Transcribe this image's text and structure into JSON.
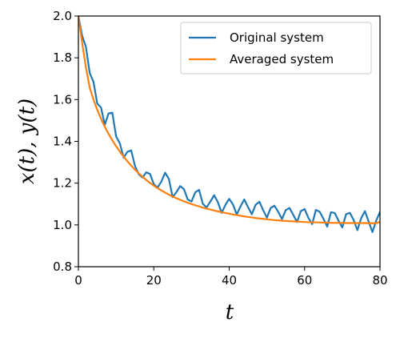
{
  "chart_data": {
    "type": "line",
    "title": "",
    "xlabel": "t",
    "ylabel": "x(t), y(t)",
    "xlim": [
      0,
      80
    ],
    "ylim": [
      0.8,
      2.0
    ],
    "x_ticks": [
      0,
      20,
      40,
      60,
      80
    ],
    "y_ticks": [
      0.8,
      1.0,
      1.2,
      1.4,
      1.6,
      1.8,
      2.0
    ],
    "x_tick_labels": [
      "0",
      "20",
      "40",
      "60",
      "80"
    ],
    "y_tick_labels": [
      "0.8",
      "1.0",
      "1.2",
      "1.4",
      "1.6",
      "1.8",
      "2.0"
    ],
    "grid": false,
    "legend_position": "top-right",
    "series": [
      {
        "name": "Original system",
        "color": "#1f77b4",
        "x": [
          0,
          1,
          2,
          3,
          4,
          5,
          6,
          7,
          8,
          9,
          10,
          11,
          12,
          13,
          14,
          15,
          16,
          17,
          18,
          19,
          20,
          21,
          22,
          23,
          24,
          25,
          26,
          27,
          28,
          29,
          30,
          31,
          32,
          33,
          34,
          35,
          36,
          37,
          38,
          39,
          40,
          41,
          42,
          43,
          44,
          45,
          46,
          47,
          48,
          49,
          50,
          51,
          52,
          53,
          54,
          55,
          56,
          57,
          58,
          59,
          60,
          61,
          62,
          63,
          64,
          65,
          66,
          67,
          68,
          69,
          70,
          71,
          72,
          73,
          74,
          75,
          76,
          77,
          78,
          79,
          80
        ],
        "y": [
          2.0,
          1.905,
          1.852,
          1.727,
          1.685,
          1.581,
          1.562,
          1.479,
          1.534,
          1.537,
          1.424,
          1.39,
          1.322,
          1.35,
          1.357,
          1.283,
          1.243,
          1.227,
          1.252,
          1.244,
          1.195,
          1.179,
          1.207,
          1.25,
          1.22,
          1.133,
          1.157,
          1.186,
          1.171,
          1.122,
          1.112,
          1.156,
          1.168,
          1.101,
          1.084,
          1.112,
          1.142,
          1.109,
          1.058,
          1.096,
          1.125,
          1.098,
          1.05,
          1.089,
          1.122,
          1.085,
          1.051,
          1.096,
          1.111,
          1.071,
          1.035,
          1.081,
          1.092,
          1.063,
          1.028,
          1.071,
          1.081,
          1.048,
          1.014,
          1.066,
          1.076,
          1.034,
          1.004,
          1.072,
          1.063,
          1.029,
          0.992,
          1.061,
          1.057,
          1.02,
          0.988,
          1.051,
          1.058,
          1.024,
          0.975,
          1.032,
          1.066,
          1.016,
          0.966,
          1.021,
          1.062
        ]
      },
      {
        "name": "Averaged system",
        "color": "#ff7f0e",
        "x": [
          0,
          1,
          2,
          3,
          4,
          5,
          6,
          7,
          8,
          9,
          10,
          11,
          12,
          13,
          14,
          15,
          16,
          17,
          18,
          19,
          20,
          21,
          22,
          23,
          24,
          25,
          26,
          27,
          28,
          29,
          30,
          31,
          32,
          33,
          34,
          35,
          36,
          37,
          38,
          39,
          40,
          41,
          42,
          43,
          44,
          45,
          46,
          47,
          48,
          49,
          50,
          51,
          52,
          53,
          54,
          55,
          56,
          57,
          58,
          59,
          60,
          61,
          62,
          63,
          64,
          65,
          66,
          67,
          68,
          69,
          70,
          71,
          72,
          73,
          74,
          75,
          76,
          77,
          78,
          79,
          80
        ],
        "y": [
          2.0,
          1.871,
          1.754,
          1.657,
          1.6,
          1.551,
          1.508,
          1.47,
          1.436,
          1.405,
          1.377,
          1.351,
          1.327,
          1.305,
          1.284,
          1.265,
          1.247,
          1.231,
          1.215,
          1.201,
          1.188,
          1.176,
          1.165,
          1.155,
          1.145,
          1.136,
          1.128,
          1.12,
          1.113,
          1.106,
          1.1,
          1.094,
          1.089,
          1.083,
          1.078,
          1.074,
          1.069,
          1.065,
          1.061,
          1.057,
          1.054,
          1.05,
          1.047,
          1.044,
          1.041,
          1.038,
          1.036,
          1.033,
          1.031,
          1.029,
          1.027,
          1.025,
          1.023,
          1.022,
          1.02,
          1.019,
          1.018,
          1.017,
          1.016,
          1.015,
          1.014,
          1.013,
          1.013,
          1.012,
          1.012,
          1.011,
          1.011,
          1.01,
          1.01,
          1.01,
          1.01,
          1.009,
          1.009,
          1.009,
          1.009,
          1.009,
          1.009,
          1.008,
          1.008,
          1.008,
          1.015
        ]
      }
    ]
  }
}
